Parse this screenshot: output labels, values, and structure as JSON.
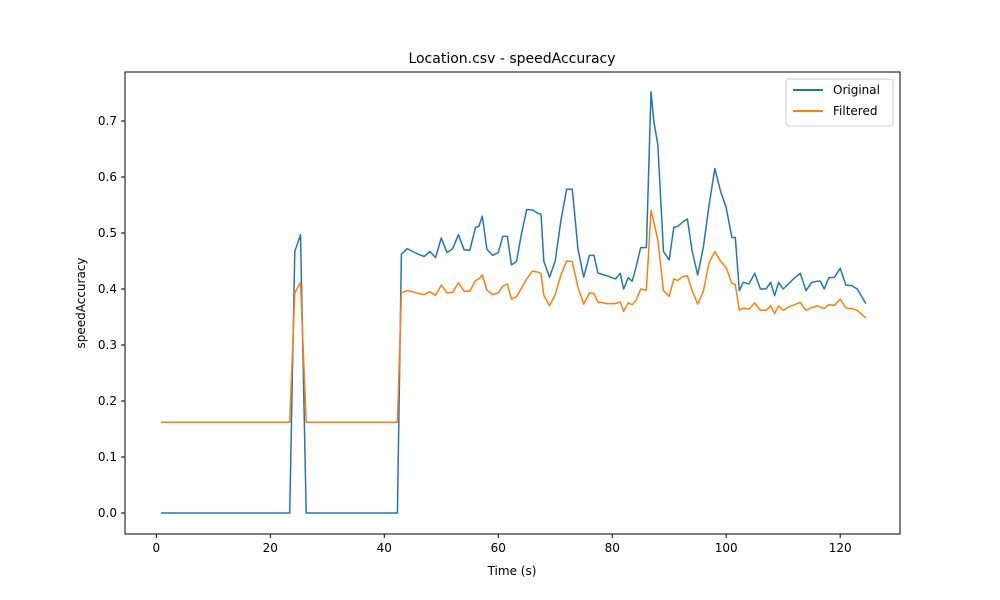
{
  "chart_data": {
    "type": "line",
    "title": "Location.csv - speedAccuracy",
    "xlabel": "Time (s)",
    "ylabel": "speedAccuracy",
    "xlim": [
      -5.5,
      130.5
    ],
    "ylim": [
      -0.0375,
      0.7875
    ],
    "xticks": [
      0,
      20,
      40,
      60,
      80,
      100,
      120
    ],
    "yticks": [
      0.0,
      0.1,
      0.2,
      0.3,
      0.4,
      0.5,
      0.6,
      0.7
    ],
    "ytick_labels": [
      "0.0",
      "0.1",
      "0.2",
      "0.3",
      "0.4",
      "0.5",
      "0.6",
      "0.7"
    ],
    "grid": false,
    "legend_position": "top-right",
    "series": [
      {
        "name": "Original",
        "color": "#1f77b4",
        "x": [
          0.8,
          23.4,
          24.3,
          25.3,
          26.3,
          42.3,
          43.0,
          44.0,
          45.0,
          46.0,
          47.0,
          48.0,
          49.0,
          50.0,
          51.0,
          52.0,
          53.0,
          54.0,
          55.0,
          56.0,
          56.6,
          57.2,
          58.0,
          59.0,
          60.0,
          60.8,
          61.6,
          62.3,
          63.2,
          64.0,
          65.0,
          66.0,
          67.0,
          67.5,
          68.0,
          69.0,
          70.0,
          71.0,
          72.0,
          73.0,
          74.0,
          75.0,
          76.0,
          76.8,
          77.5,
          78.0,
          79.0,
          80.0,
          80.6,
          81.4,
          82.0,
          82.8,
          83.5,
          84.2,
          85.0,
          86.0,
          86.8,
          87.3,
          88.0,
          89.0,
          90.0,
          90.8,
          91.5,
          92.3,
          93.2,
          94.0,
          95.0,
          96.0,
          97.0,
          98.0,
          99.0,
          100.0,
          101.0,
          101.6,
          102.3,
          103.0,
          104.0,
          105.0,
          106.0,
          107.0,
          107.8,
          108.5,
          109.2,
          110.0,
          111.0,
          112.0,
          113.0,
          114.0,
          115.0,
          116.0,
          116.5,
          117.2,
          118.0,
          119.0,
          120.0,
          121.0,
          122.0,
          123.0,
          124.5
        ],
        "y": [
          0.0,
          0.0,
          0.467,
          0.497,
          0.0,
          0.0,
          0.462,
          0.472,
          0.467,
          0.462,
          0.458,
          0.467,
          0.456,
          0.491,
          0.465,
          0.472,
          0.497,
          0.47,
          0.469,
          0.51,
          0.512,
          0.53,
          0.471,
          0.46,
          0.465,
          0.494,
          0.494,
          0.443,
          0.449,
          0.494,
          0.542,
          0.541,
          0.535,
          0.534,
          0.45,
          0.421,
          0.45,
          0.522,
          0.578,
          0.578,
          0.471,
          0.421,
          0.46,
          0.46,
          0.428,
          0.427,
          0.424,
          0.42,
          0.418,
          0.428,
          0.4,
          0.42,
          0.414,
          0.44,
          0.474,
          0.474,
          0.752,
          0.7,
          0.658,
          0.467,
          0.452,
          0.51,
          0.512,
          0.519,
          0.525,
          0.469,
          0.425,
          0.475,
          0.55,
          0.615,
          0.575,
          0.545,
          0.492,
          0.492,
          0.397,
          0.412,
          0.409,
          0.428,
          0.4,
          0.4,
          0.412,
          0.388,
          0.412,
          0.4,
          0.41,
          0.42,
          0.428,
          0.397,
          0.412,
          0.414,
          0.414,
          0.4,
          0.42,
          0.421,
          0.437,
          0.407,
          0.406,
          0.4,
          0.374
        ]
      },
      {
        "name": "Filtered",
        "color": "#ff7f0e",
        "x": [
          0.8,
          23.4,
          24.3,
          25.3,
          26.3,
          42.3,
          43.0,
          44.0,
          45.0,
          46.0,
          47.0,
          48.0,
          49.0,
          50.0,
          51.0,
          52.0,
          53.0,
          54.0,
          55.0,
          56.0,
          56.6,
          57.2,
          58.0,
          59.0,
          60.0,
          60.8,
          61.6,
          62.3,
          63.2,
          64.0,
          65.0,
          66.0,
          67.0,
          67.5,
          68.0,
          69.0,
          70.0,
          71.0,
          72.0,
          73.0,
          74.0,
          75.0,
          76.0,
          76.8,
          77.5,
          78.0,
          79.0,
          80.0,
          80.6,
          81.4,
          82.0,
          82.8,
          83.5,
          84.2,
          85.0,
          86.0,
          86.8,
          87.3,
          88.0,
          89.0,
          90.0,
          90.8,
          91.5,
          92.3,
          93.2,
          94.0,
          95.0,
          96.0,
          97.0,
          98.0,
          99.0,
          100.0,
          101.0,
          101.6,
          102.3,
          103.0,
          104.0,
          105.0,
          106.0,
          107.0,
          107.8,
          108.5,
          109.2,
          110.0,
          111.0,
          112.0,
          113.0,
          114.0,
          115.0,
          116.0,
          116.5,
          117.2,
          118.0,
          119.0,
          120.0,
          121.0,
          122.0,
          123.0,
          124.5
        ],
        "y": [
          0.162,
          0.162,
          0.393,
          0.412,
          0.162,
          0.162,
          0.393,
          0.397,
          0.395,
          0.392,
          0.39,
          0.395,
          0.389,
          0.407,
          0.393,
          0.394,
          0.411,
          0.396,
          0.396,
          0.415,
          0.418,
          0.425,
          0.398,
          0.39,
          0.393,
          0.405,
          0.409,
          0.382,
          0.386,
          0.4,
          0.418,
          0.432,
          0.43,
          0.428,
          0.389,
          0.37,
          0.39,
          0.425,
          0.45,
          0.449,
          0.403,
          0.373,
          0.393,
          0.392,
          0.376,
          0.376,
          0.374,
          0.374,
          0.374,
          0.377,
          0.36,
          0.375,
          0.372,
          0.38,
          0.4,
          0.398,
          0.54,
          0.52,
          0.488,
          0.397,
          0.387,
          0.418,
          0.415,
          0.422,
          0.424,
          0.398,
          0.373,
          0.396,
          0.447,
          0.467,
          0.45,
          0.438,
          0.41,
          0.408,
          0.362,
          0.366,
          0.364,
          0.375,
          0.362,
          0.362,
          0.37,
          0.356,
          0.37,
          0.362,
          0.368,
          0.372,
          0.376,
          0.362,
          0.367,
          0.37,
          0.368,
          0.365,
          0.372,
          0.371,
          0.382,
          0.366,
          0.365,
          0.362,
          0.348
        ]
      }
    ]
  }
}
